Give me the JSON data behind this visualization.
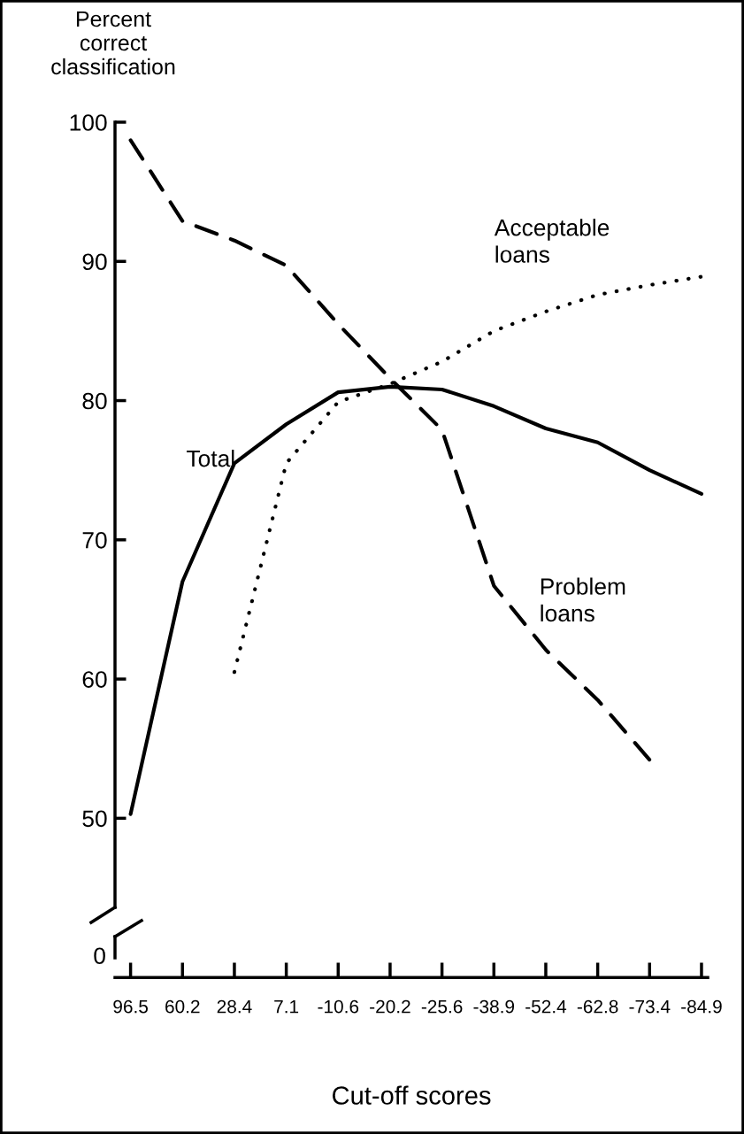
{
  "chart_data": {
    "type": "line",
    "ylabel": "Percent\ncorrect\nclassification",
    "xlabel": "Cut-off scores",
    "categories": [
      "96.5",
      "60.2",
      "28.4",
      "7.1",
      "-10.6",
      "-20.2",
      "-25.6",
      "-38.9",
      "-52.4",
      "-62.8",
      "-73.4",
      "-84.9"
    ],
    "ylim": [
      43.6,
      100
    ],
    "yticks": [
      50,
      60,
      70,
      80,
      90,
      100
    ],
    "series": [
      {
        "color": "#000000",
        "line_style": "dashed",
        "values": [
          98.7,
          92.9,
          91.5,
          89.7,
          85.5,
          81.6,
          77.9,
          66.7,
          62.1,
          58.5,
          54.2,
          null
        ]
      },
      {
        "color": "#000000",
        "line_style": "solid",
        "values": [
          50.3,
          67.0,
          75.5,
          78.3,
          80.6,
          81.0,
          80.8,
          79.6,
          78.0,
          77.0,
          75.0,
          73.3
        ]
      },
      {
        "color": "#000000",
        "line_style": "dotted",
        "values": [
          null,
          null,
          60.5,
          75.5,
          79.9,
          81.2,
          82.8,
          85.0,
          86.4,
          87.6,
          88.3,
          88.9
        ]
      }
    ],
    "annotations": [
      "Acceptable\nloans",
      "Total",
      "Problem\nloans",
      "0"
    ]
  }
}
